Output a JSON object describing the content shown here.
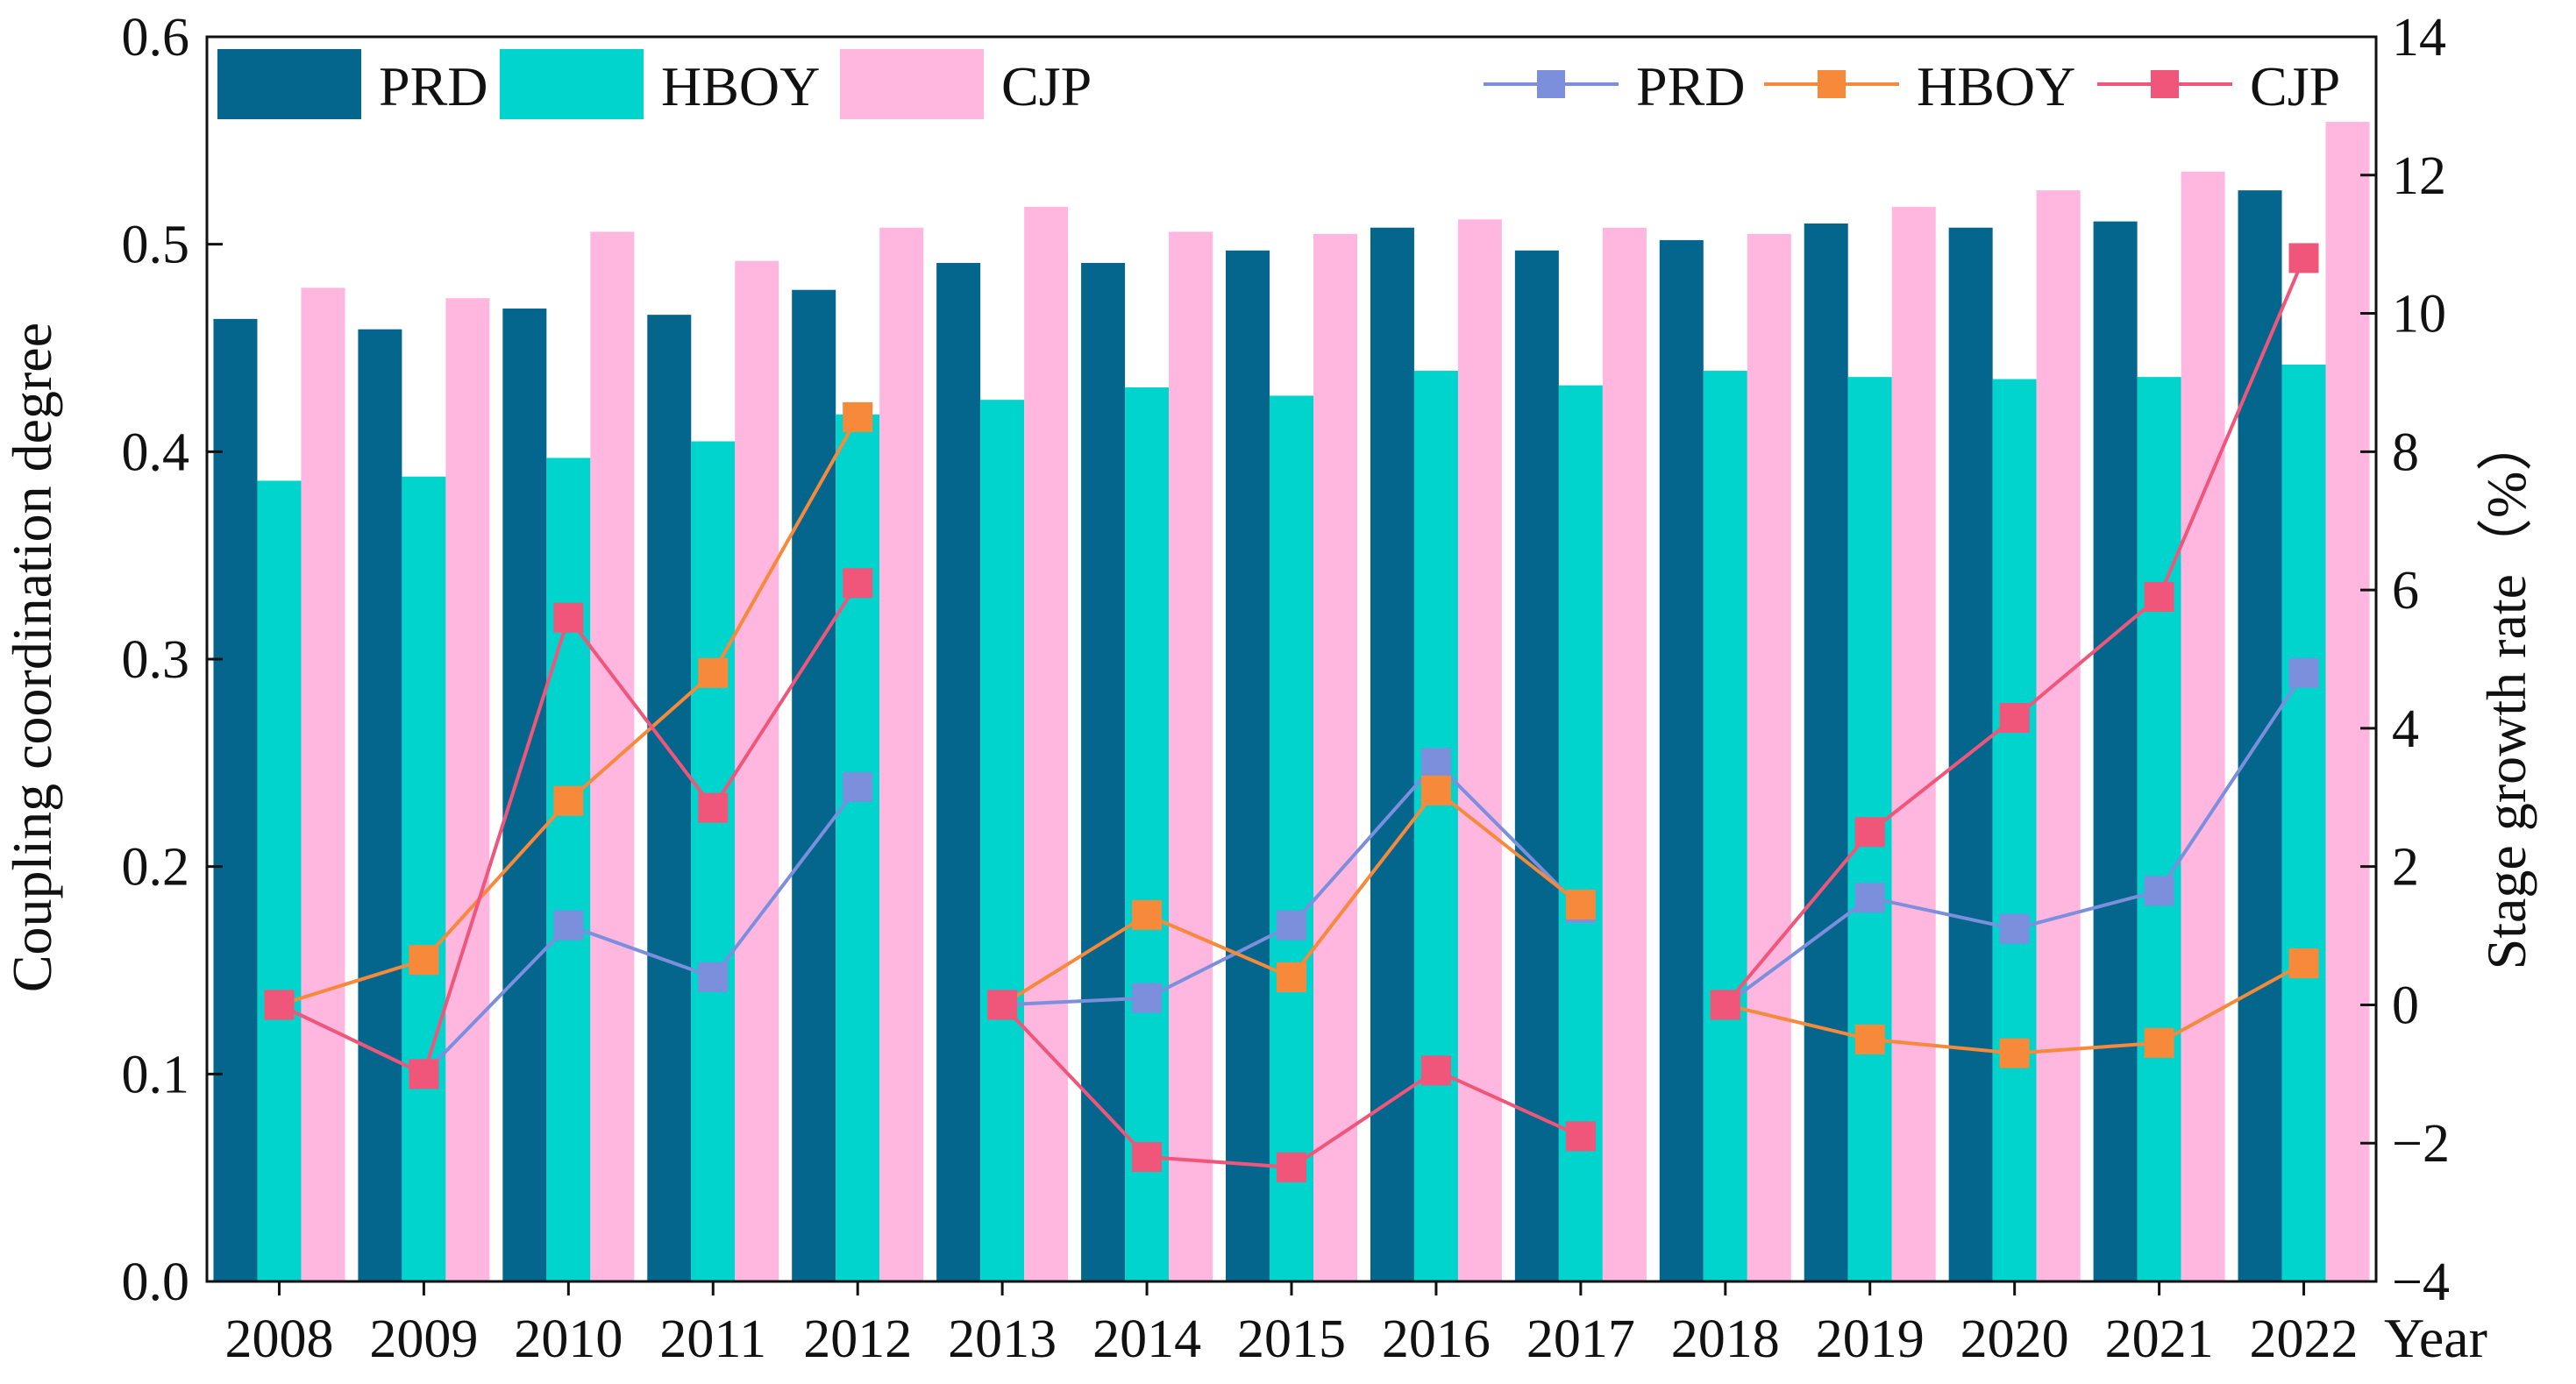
{
  "chart_data": {
    "type": "bar+line",
    "categories": [
      "2008",
      "2009",
      "2010",
      "2011",
      "2012",
      "2013",
      "2014",
      "2015",
      "2016",
      "2017",
      "2018",
      "2019",
      "2020",
      "2021",
      "2022"
    ],
    "xlabel": "Year",
    "ylabel_left": "Coupling coordination degree",
    "ylabel_right": "Stage growth rate（%）",
    "ylim_left": [
      0.0,
      0.6
    ],
    "yticks_left": [
      "0.0",
      "0.1",
      "0.2",
      "0.3",
      "0.4",
      "0.5",
      "0.6"
    ],
    "ylim_right": [
      -4,
      14
    ],
    "yticks_right": [
      "−4",
      "−2",
      "0",
      "2",
      "4",
      "6",
      "8",
      "10",
      "12",
      "14"
    ],
    "grid": false,
    "bar_series": [
      {
        "name": "PRD",
        "color": "#05668d",
        "values": [
          0.464,
          0.459,
          0.469,
          0.466,
          0.478,
          0.491,
          0.491,
          0.497,
          0.508,
          0.497,
          0.502,
          0.51,
          0.508,
          0.511,
          0.526
        ]
      },
      {
        "name": "HBOY",
        "color": "#00d4cc",
        "values": [
          0.386,
          0.388,
          0.397,
          0.405,
          0.418,
          0.425,
          0.431,
          0.427,
          0.439,
          0.432,
          0.439,
          0.436,
          0.435,
          0.436,
          0.442
        ]
      },
      {
        "name": "CJP",
        "color": "#ffb6df",
        "values": [
          0.479,
          0.474,
          0.506,
          0.492,
          0.508,
          0.518,
          0.506,
          0.505,
          0.512,
          0.508,
          0.505,
          0.518,
          0.526,
          0.535,
          0.559
        ]
      }
    ],
    "line_series": [
      {
        "name": "PRD",
        "color": "#7b8fdc",
        "segments": [
          [
            0,
            [
              0.0,
              -1.0,
              1.15,
              0.4,
              3.15
            ]
          ],
          [
            5,
            [
              0.0,
              0.1,
              1.15,
              3.5,
              1.4
            ]
          ],
          [
            10,
            [
              0.0,
              1.55,
              1.1,
              1.65,
              4.8
            ]
          ]
        ]
      },
      {
        "name": "HBOY",
        "color": "#f7893b",
        "segments": [
          [
            0,
            [
              0.0,
              0.65,
              2.95,
              4.8,
              8.5
            ]
          ],
          [
            5,
            [
              0.0,
              1.3,
              0.4,
              3.1,
              1.45
            ]
          ],
          [
            10,
            [
              0.0,
              -0.5,
              -0.7,
              -0.55,
              0.6
            ]
          ]
        ]
      },
      {
        "name": "CJP",
        "color": "#f0567a",
        "segments": [
          [
            0,
            [
              0.0,
              -1.0,
              5.6,
              2.85,
              6.1
            ]
          ],
          [
            5,
            [
              0.0,
              -2.2,
              -2.35,
              -0.95,
              -1.9
            ]
          ],
          [
            10,
            [
              0.0,
              2.5,
              4.15,
              5.9,
              10.8
            ]
          ]
        ]
      }
    ],
    "legend_bars": [
      "PRD",
      "HBOY",
      "CJP"
    ],
    "legend_lines": [
      "PRD",
      "HBOY",
      "CJP"
    ],
    "legend_position": "top"
  }
}
